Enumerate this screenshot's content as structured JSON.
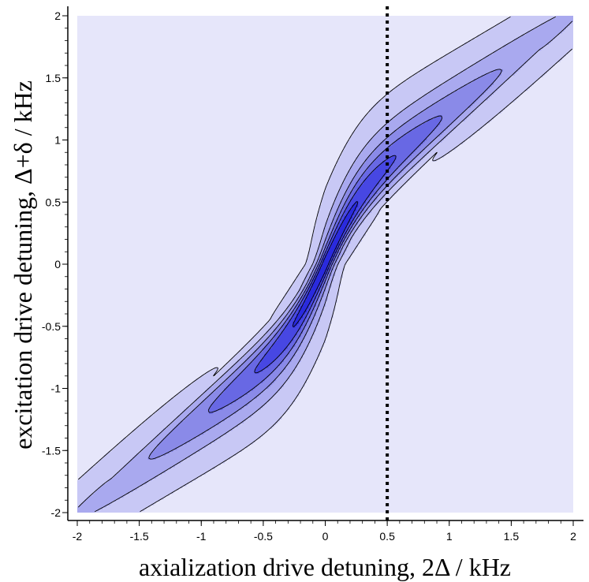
{
  "chart_data": {
    "type": "contour",
    "title": "",
    "xlabel": "axialization drive detuning, 2Δ / kHz",
    "ylabel": "excitation drive detuning, Δ+δ / kHz",
    "xlim": [
      -2,
      2
    ],
    "ylim": [
      -2,
      2
    ],
    "x_ticks": [
      -2,
      -1.5,
      -1,
      -0.5,
      0,
      0.5,
      1,
      1.5,
      2
    ],
    "y_ticks": [
      -2,
      -1.5,
      -1,
      -0.5,
      0,
      0.5,
      1,
      1.5,
      2
    ],
    "x_tick_labels": [
      "-2",
      "-1.5",
      "-1",
      "-0.5",
      "0",
      "0.5",
      "1",
      "1.5",
      "2"
    ],
    "y_tick_labels": [
      "-2",
      "-1.5",
      "-1",
      "-0.5",
      "0",
      "0.5",
      "1",
      "1.5",
      "2"
    ],
    "contour_levels": 6,
    "marker_line": {
      "x": 0.5,
      "style": "dotted"
    },
    "colors": {
      "background": "#e6e6fa",
      "level_fills": [
        "#c8c8f5",
        "#a9a9ef",
        "#8a8ae8",
        "#6868e4",
        "#4747e3",
        "#2a2ade"
      ],
      "contour_line": "#000000",
      "marker_line": "#000000"
    }
  }
}
